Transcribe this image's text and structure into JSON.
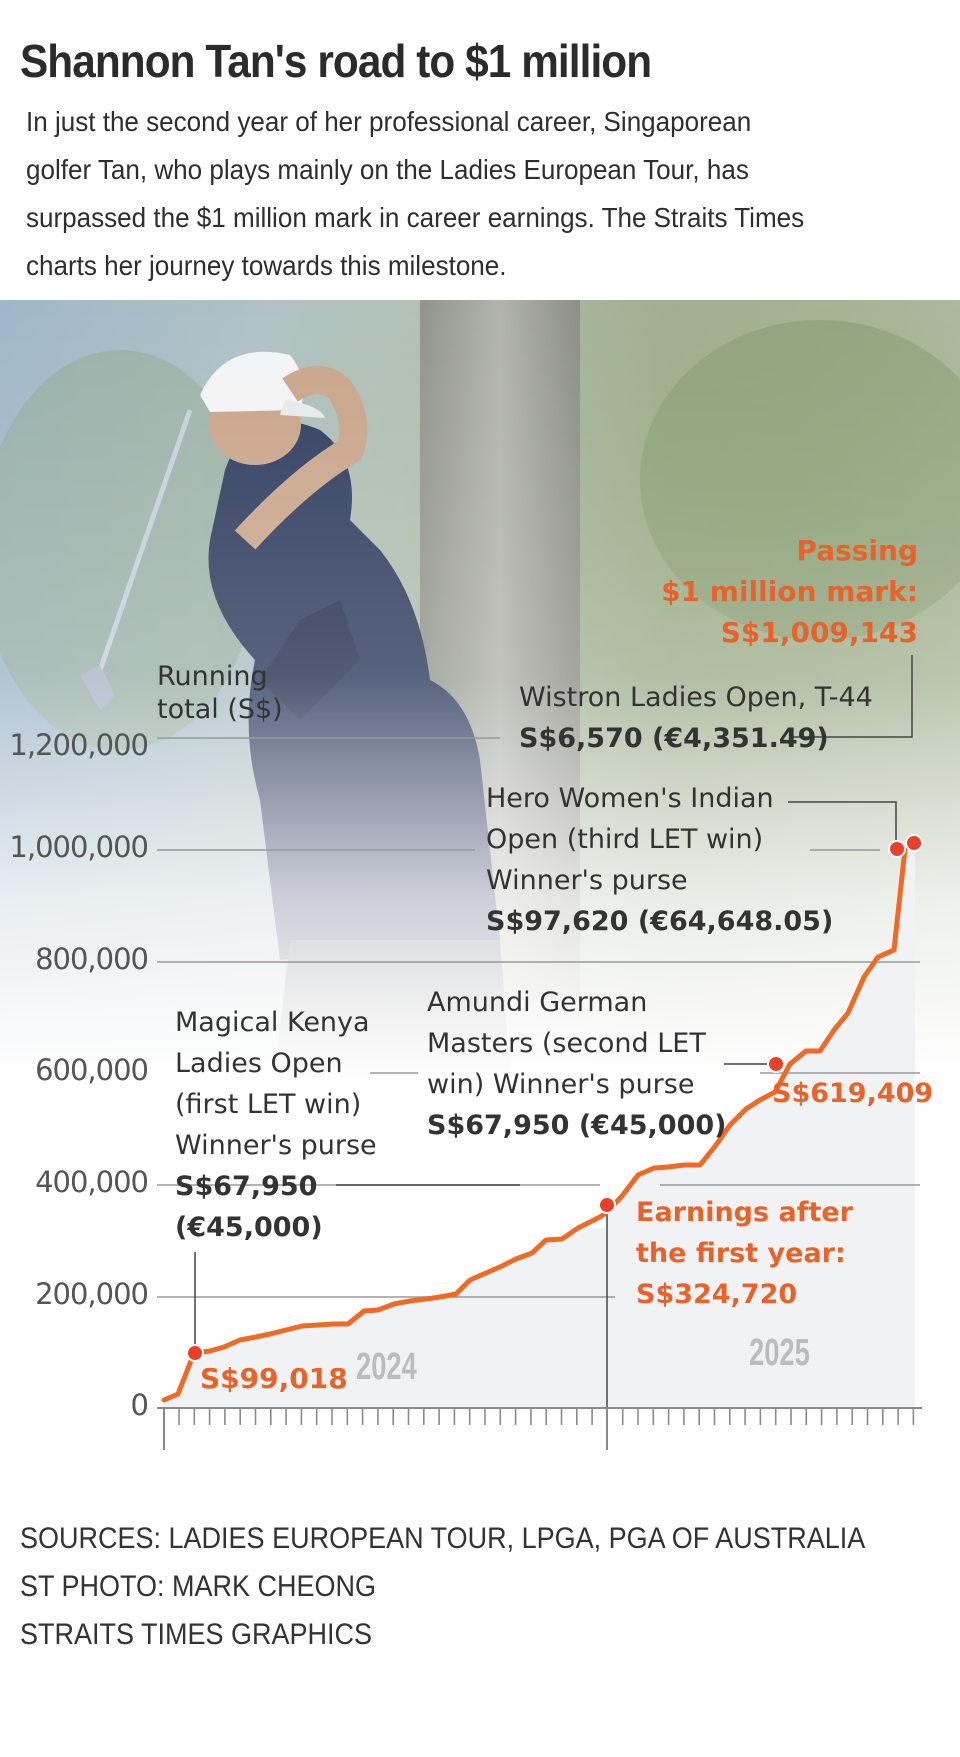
{
  "header": {
    "title": "Shannon Tan's road to $1 million",
    "intro_lines": [
      "In just the second year of her professional career, Singaporean",
      "golfer Tan, who plays mainly on the Ladies European Tour, has",
      "surpassed the $1 million mark in career earnings. The Straits Times",
      "charts her journey towards this milestone."
    ]
  },
  "colors": {
    "line": "#ee6a25",
    "dot": "#e8402a",
    "highlight_text": "#e8632a",
    "grid": "#9a9a9a",
    "area_fill": "#f1f2f4",
    "year_label": "#b9bcc0"
  },
  "annotations": {
    "passing": {
      "line1": "Passing",
      "line2": "$1 million mark:",
      "value": "S$1,009,143"
    },
    "wistron": {
      "line1": "Wistron Ladies Open, T-44",
      "value": "S$6,570 (€4,351.49)"
    },
    "hero": {
      "line1": "Hero Women's Indian",
      "line2": "Open (third LET win)",
      "line3": "Winner's purse",
      "value": "S$97,620 (€64,648.05)"
    },
    "amundi": {
      "line1": "Amundi German",
      "line2": "Masters (second LET",
      "line3": "win) Winner's purse",
      "value": "S$67,950 (€45,000)"
    },
    "kenya": {
      "line1": "Magical Kenya",
      "line2": "Ladies Open",
      "line3": "(first LET win)",
      "line4": "Winner's purse",
      "value1": "S$67,950",
      "value2": "(€45,000)"
    },
    "after_first_year": {
      "line1": "Earnings after",
      "line2": "the first year:",
      "value": "S$324,720"
    },
    "point_619": "S$619,409",
    "point_99": "S$99,018"
  },
  "footer": {
    "sources": "SOURCES: LADIES EUROPEAN TOUR, LPGA, PGA OF AUSTRALIA",
    "photo": "ST PHOTO: MARK CHEONG",
    "graphics": "STRAITS TIMES GRAPHICS"
  },
  "chart_data": {
    "type": "line",
    "title": "Shannon Tan's road to $1 million",
    "ylabel": "Running total (S$)",
    "xlabel": "",
    "ylim": [
      0,
      1200000
    ],
    "yticks": [
      0,
      200000,
      400000,
      600000,
      800000,
      1000000,
      1200000
    ],
    "ytick_labels": [
      "0",
      "200,000",
      "400,000",
      "600,000",
      "800,000",
      "1,000,000",
      "1,200,000"
    ],
    "year_labels": [
      "2024",
      "2025"
    ],
    "grid": true,
    "x": [
      0,
      1,
      2,
      3,
      4,
      5,
      6,
      7,
      8,
      9,
      10,
      11,
      12,
      13,
      14,
      15,
      16,
      17,
      17.5,
      18,
      19,
      20,
      21,
      22,
      23,
      24,
      25,
      26,
      27,
      28,
      29,
      30,
      31,
      32,
      33,
      34,
      35,
      36,
      37,
      38,
      39,
      40,
      41,
      42,
      43,
      44,
      45,
      46,
      47
    ],
    "values": [
      15000,
      25000,
      99018,
      103000,
      110000,
      122000,
      128000,
      133000,
      141000,
      149000,
      150000,
      151000,
      152000,
      175000,
      178000,
      188000,
      192000,
      197000,
      198000,
      205000,
      232000,
      244000,
      255000,
      268000,
      278000,
      303000,
      305000,
      324720,
      368000,
      405000,
      418000,
      420000,
      425000,
      428000,
      429000,
      465000,
      510000,
      540000,
      553000,
      619409,
      642000,
      645000,
      715000,
      745000,
      860000,
      895000,
      912000,
      1002573,
      1009143
    ],
    "highlighted_points": [
      {
        "label": "Magical Kenya Ladies Open (first LET win)",
        "value": 99018
      },
      {
        "label": "Earnings after the first year",
        "value": 324720
      },
      {
        "label": "Amundi German Masters (second LET win)",
        "value": 619409
      },
      {
        "label": "Hero Women's Indian Open (third LET win)",
        "value": 1002573
      },
      {
        "label": "Wistron Ladies Open, T-44 — Passing $1 million mark",
        "value": 1009143
      }
    ]
  }
}
